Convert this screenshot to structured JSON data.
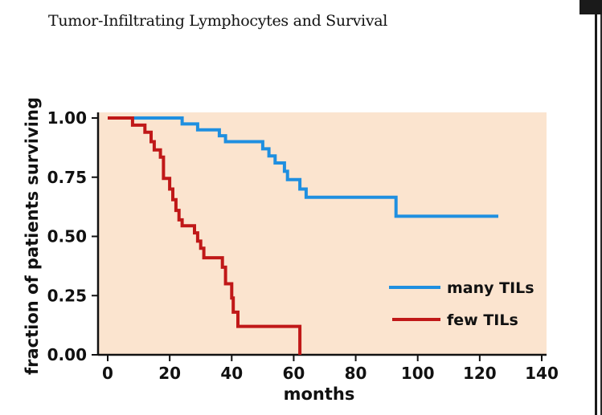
{
  "title": "Tumor-Infiltrating Lymphocytes and Survival",
  "chart_data": {
    "type": "line",
    "step": true,
    "title": "Tumor-Infiltrating Lymphocytes and Survival",
    "xlabel": "months",
    "ylabel": "fraction of patients surviving",
    "xlim": [
      0,
      140
    ],
    "ylim": [
      0,
      1
    ],
    "xticks": [
      "0",
      "20",
      "40",
      "60",
      "80",
      "100",
      "120",
      "140"
    ],
    "yticks": [
      "0.00",
      "0.25",
      "0.50",
      "0.75",
      "1.00"
    ],
    "grid": false,
    "legend_position": "bottom-right",
    "background_color": "#fbe4cf",
    "series": [
      {
        "name": "many TILs",
        "color": "#1f8fe0",
        "points": [
          [
            0,
            1.0
          ],
          [
            24,
            1.0
          ],
          [
            24,
            0.975
          ],
          [
            29,
            0.975
          ],
          [
            29,
            0.95
          ],
          [
            36,
            0.95
          ],
          [
            36,
            0.925
          ],
          [
            38,
            0.925
          ],
          [
            38,
            0.9
          ],
          [
            50,
            0.9
          ],
          [
            50,
            0.87
          ],
          [
            52,
            0.87
          ],
          [
            52,
            0.84
          ],
          [
            54,
            0.84
          ],
          [
            54,
            0.81
          ],
          [
            57,
            0.81
          ],
          [
            57,
            0.775
          ],
          [
            58,
            0.775
          ],
          [
            58,
            0.74
          ],
          [
            62,
            0.74
          ],
          [
            62,
            0.7
          ],
          [
            64,
            0.7
          ],
          [
            64,
            0.665
          ],
          [
            93,
            0.665
          ],
          [
            93,
            0.585
          ],
          [
            126,
            0.585
          ]
        ]
      },
      {
        "name": "few TILs",
        "color": "#c01818",
        "points": [
          [
            0,
            1.0
          ],
          [
            8,
            1.0
          ],
          [
            8,
            0.97
          ],
          [
            12,
            0.97
          ],
          [
            12,
            0.94
          ],
          [
            14,
            0.94
          ],
          [
            14,
            0.9
          ],
          [
            15,
            0.9
          ],
          [
            15,
            0.865
          ],
          [
            17,
            0.865
          ],
          [
            17,
            0.835
          ],
          [
            18,
            0.835
          ],
          [
            18,
            0.745
          ],
          [
            20,
            0.745
          ],
          [
            20,
            0.7
          ],
          [
            21,
            0.7
          ],
          [
            21,
            0.655
          ],
          [
            22,
            0.655
          ],
          [
            22,
            0.61
          ],
          [
            23,
            0.61
          ],
          [
            23,
            0.57
          ],
          [
            24,
            0.57
          ],
          [
            24,
            0.545
          ],
          [
            28,
            0.545
          ],
          [
            28,
            0.515
          ],
          [
            29,
            0.515
          ],
          [
            29,
            0.48
          ],
          [
            30,
            0.48
          ],
          [
            30,
            0.45
          ],
          [
            31,
            0.45
          ],
          [
            31,
            0.41
          ],
          [
            37,
            0.41
          ],
          [
            37,
            0.37
          ],
          [
            38,
            0.37
          ],
          [
            38,
            0.3
          ],
          [
            40,
            0.3
          ],
          [
            40,
            0.24
          ],
          [
            40.5,
            0.24
          ],
          [
            40.5,
            0.18
          ],
          [
            42,
            0.18
          ],
          [
            42,
            0.12
          ],
          [
            62,
            0.12
          ],
          [
            62,
            0.0
          ]
        ]
      }
    ]
  }
}
